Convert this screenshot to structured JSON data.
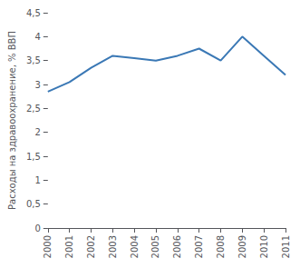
{
  "chart_data": {
    "type": "line",
    "ylabel": "Расходы на здравоохранение, % ВВП",
    "x": [
      2000,
      2001,
      2002,
      2003,
      2004,
      2005,
      2006,
      2007,
      2008,
      2009,
      2010,
      2011
    ],
    "values": [
      2.85,
      3.05,
      3.35,
      3.6,
      3.55,
      3.5,
      3.6,
      3.75,
      3.5,
      4.0,
      3.6,
      3.2
    ],
    "color": "#3a78b5",
    "xlim": [
      2000,
      2011
    ],
    "xticks": [
      2000,
      2001,
      2002,
      2003,
      2004,
      2005,
      2006,
      2007,
      2008,
      2009,
      2010,
      2011
    ],
    "ylim": [
      0,
      4.5
    ],
    "yticks": [
      0,
      {
        "value": 0.5,
        "label": "0,5"
      },
      1,
      {
        "value": 1.5,
        "label": "1,5"
      },
      2,
      {
        "value": 2.5,
        "label": "2,5"
      },
      3,
      {
        "value": 3.5,
        "label": "3,5"
      },
      4,
      {
        "value": 4.5,
        "label": "4,5"
      }
    ],
    "grid": false
  }
}
